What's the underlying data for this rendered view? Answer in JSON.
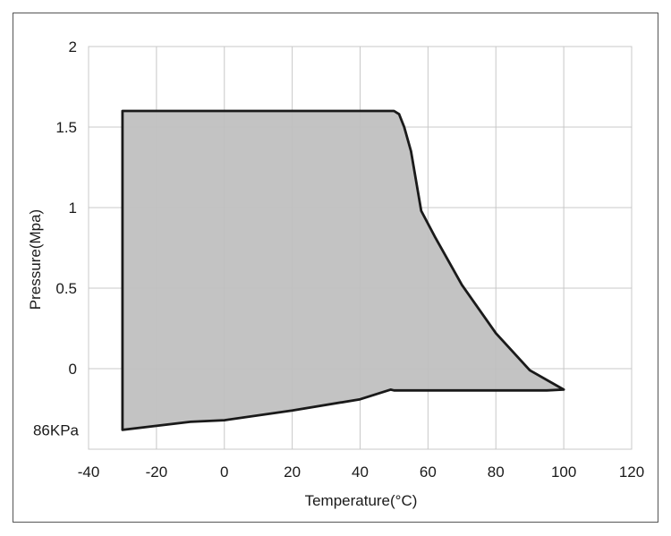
{
  "chart_data": {
    "type": "area",
    "title": "",
    "xlabel": "Temperature(°C)",
    "ylabel": "Pressure(Mpa)",
    "xlim": [
      -40,
      120
    ],
    "ylim": [
      -0.5,
      2
    ],
    "xticks": [
      -40,
      -20,
      0,
      20,
      40,
      60,
      80,
      100,
      120
    ],
    "xtick_labels": [
      "-40",
      "-20",
      "0",
      "20",
      "40",
      "60",
      "80",
      "100",
      "120"
    ],
    "yticks": [
      0,
      0.5,
      1,
      1.5,
      2
    ],
    "ytick_labels": [
      "0",
      "0.5",
      "1",
      "1.5",
      "2"
    ],
    "extra_ytick": {
      "value": -0.38,
      "label": "86KPa"
    },
    "grid": true,
    "fill_color": "#c0c0c0",
    "line_color": "#1a1a1a",
    "region": [
      [
        -30,
        1.6
      ],
      [
        50,
        1.6
      ],
      [
        51.5,
        1.58
      ],
      [
        53,
        1.5
      ],
      [
        55,
        1.35
      ],
      [
        58,
        0.98
      ],
      [
        62,
        0.82
      ],
      [
        70,
        0.52
      ],
      [
        80,
        0.22
      ],
      [
        90,
        -0.01
      ],
      [
        100,
        -0.13
      ],
      [
        95,
        -0.135
      ],
      [
        50,
        -0.135
      ],
      [
        49,
        -0.13
      ],
      [
        40,
        -0.19
      ],
      [
        20,
        -0.26
      ],
      [
        0,
        -0.32
      ],
      [
        -10,
        -0.33
      ],
      [
        -30,
        -0.38
      ],
      [
        -30,
        1.6
      ]
    ]
  }
}
